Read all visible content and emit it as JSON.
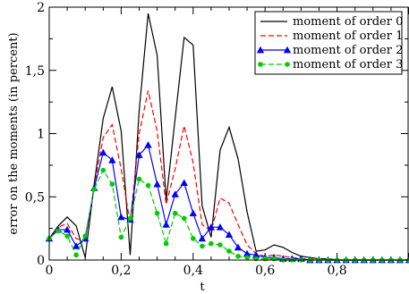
{
  "chart_data": {
    "type": "line",
    "title": "",
    "xlabel": "t",
    "ylabel": "error on the moments (in percent)",
    "xlim": [
      0,
      1
    ],
    "ylim": [
      0,
      2
    ],
    "x_ticks": [
      0,
      0.2,
      0.4,
      0.6,
      0.8
    ],
    "x_tick_labels": [
      "0",
      "0,2",
      "0,4",
      "0,6",
      "0,8"
    ],
    "y_ticks": [
      0,
      0.5,
      1,
      1.5,
      2
    ],
    "y_tick_labels": [
      "0",
      "0,5",
      "1",
      "1,5",
      "2"
    ],
    "grid": false,
    "legend_position": "top-right",
    "x": [
      0,
      0.025,
      0.05,
      0.075,
      0.1,
      0.125,
      0.15,
      0.175,
      0.2,
      0.225,
      0.25,
      0.275,
      0.3,
      0.325,
      0.35,
      0.375,
      0.4,
      0.425,
      0.45,
      0.475,
      0.5,
      0.525,
      0.55,
      0.575,
      0.6,
      0.625,
      0.65,
      0.675,
      0.7,
      0.725,
      0.75,
      0.775,
      0.8,
      0.825,
      0.85,
      0.875,
      0.9,
      0.925,
      0.95,
      0.975,
      1.0
    ],
    "series": [
      {
        "name": "moment of order 0",
        "color": "#000000",
        "dash": "solid",
        "marker": "none",
        "values": [
          0.17,
          0.27,
          0.34,
          0.27,
          0.02,
          0.6,
          1.12,
          1.37,
          1.02,
          0.04,
          1.18,
          1.95,
          1.62,
          0.47,
          1.12,
          1.76,
          1.7,
          0.43,
          0.18,
          0.87,
          1.05,
          0.8,
          0.38,
          0.07,
          0.08,
          0.12,
          0.1,
          0.06,
          0.03,
          0.02,
          0.01,
          0.01,
          0.0,
          0.0,
          0.0,
          0.0,
          0.0,
          0.0,
          0.0,
          0.0,
          0.0
        ]
      },
      {
        "name": "moment of order 1",
        "color": "#ff0000",
        "dash": "dashed",
        "marker": "none",
        "values": [
          0.17,
          0.26,
          0.29,
          0.17,
          0.15,
          0.58,
          0.97,
          1.07,
          0.72,
          0.29,
          1.0,
          1.34,
          1.02,
          0.44,
          0.72,
          1.06,
          0.77,
          0.28,
          0.23,
          0.49,
          0.45,
          0.28,
          0.12,
          0.05,
          0.03,
          0.04,
          0.03,
          0.02,
          0.01,
          0.01,
          0.0,
          0.0,
          0.0,
          0.0,
          0.0,
          0.0,
          0.0,
          0.0,
          0.0,
          0.0,
          0.0
        ]
      },
      {
        "name": "moment of order 2",
        "color": "#0000ff",
        "dash": "solid",
        "marker": "triangle",
        "values": [
          0.17,
          0.24,
          0.24,
          0.11,
          0.17,
          0.57,
          0.85,
          0.79,
          0.34,
          0.32,
          0.83,
          0.91,
          0.6,
          0.28,
          0.52,
          0.61,
          0.37,
          0.17,
          0.26,
          0.26,
          0.2,
          0.1,
          0.05,
          0.04,
          0.02,
          0.02,
          0.01,
          0.01,
          0.01,
          0.0,
          0.0,
          0.0,
          0.0,
          0.0,
          0.0,
          0.0,
          0.0,
          0.0,
          0.0,
          0.0,
          0.0
        ]
      },
      {
        "name": "moment of order 3",
        "color": "#00cc00",
        "dash": "dashed",
        "marker": "circle",
        "values": [
          0.17,
          0.23,
          0.19,
          0.04,
          0.19,
          0.56,
          0.71,
          0.6,
          0.18,
          0.33,
          0.64,
          0.59,
          0.37,
          0.13,
          0.37,
          0.33,
          0.17,
          0.11,
          0.13,
          0.12,
          0.07,
          0.03,
          0.02,
          0.01,
          0.01,
          0.01,
          0.0,
          0.0,
          0.0,
          0.0,
          0.0,
          0.0,
          0.0,
          0.0,
          0.0,
          0.0,
          0.0,
          0.0,
          0.0,
          0.0,
          0.0
        ]
      }
    ]
  }
}
